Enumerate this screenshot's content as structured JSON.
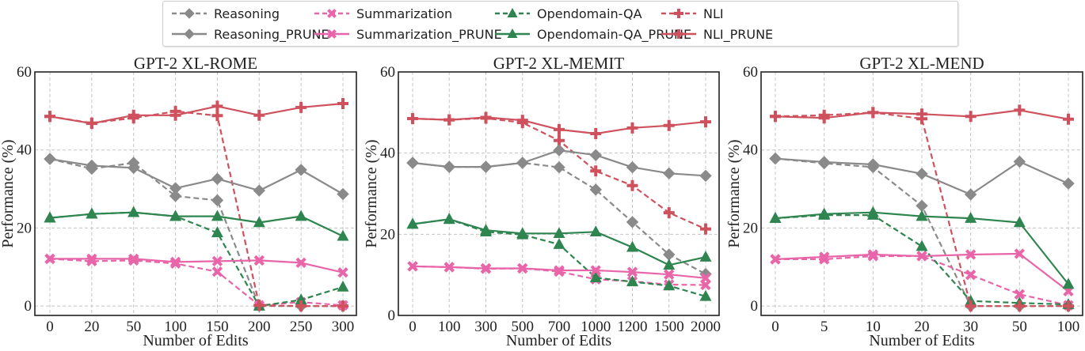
{
  "legend": {
    "entries": [
      {
        "name": "Reasoning",
        "color": "#8a8a8a",
        "dash": true,
        "marker": "diamond"
      },
      {
        "name": "Reasoning_PRUNE",
        "color": "#8a8a8a",
        "dash": false,
        "marker": "diamond"
      },
      {
        "name": "Summarization",
        "color": "#e865a9",
        "dash": true,
        "marker": "x"
      },
      {
        "name": "Summarization_PRUNE",
        "color": "#e865a9",
        "dash": false,
        "marker": "x"
      },
      {
        "name": "Opendomain-QA",
        "color": "#2e8550",
        "dash": true,
        "marker": "triangle"
      },
      {
        "name": "Opendomain-QA_PRUNE",
        "color": "#2e8550",
        "dash": false,
        "marker": "triangle"
      },
      {
        "name": "NLI",
        "color": "#cf515d",
        "dash": true,
        "marker": "plus"
      },
      {
        "name": "NLI_PRUNE",
        "color": "#cf515d",
        "dash": false,
        "marker": "plus"
      }
    ]
  },
  "chart_data": [
    {
      "type": "line",
      "title": "GPT-2 XL-ROME",
      "xlabel": "Number of Edits",
      "ylabel": "Performance (%)",
      "categories": [
        "0",
        "20",
        "50",
        "100",
        "150",
        "200",
        "250",
        "300"
      ],
      "ylim": [
        -2.4,
        60
      ],
      "yticks": [
        0,
        20,
        40,
        60
      ],
      "grid": true,
      "legend": "top (shared, above charts)",
      "series": [
        {
          "name": "Reasoning",
          "values": [
            37.7,
            35.2,
            36.7,
            28.2,
            27.1,
            0.0,
            0.0,
            0.0
          ]
        },
        {
          "name": "Reasoning_PRUNE",
          "values": [
            37.7,
            36.0,
            35.4,
            30.2,
            32.6,
            29.6,
            34.9,
            28.7
          ]
        },
        {
          "name": "Summarization",
          "values": [
            12.1,
            11.5,
            11.7,
            10.9,
            8.8,
            0.2,
            1.0,
            0.2
          ]
        },
        {
          "name": "Summarization_PRUNE",
          "values": [
            12.1,
            12.1,
            12.1,
            11.3,
            11.5,
            11.7,
            11.1,
            8.6
          ]
        },
        {
          "name": "Opendomain-QA",
          "values": [
            22.6,
            23.6,
            24.0,
            23.0,
            18.8,
            0.0,
            1.6,
            4.9
          ]
        },
        {
          "name": "Opendomain-QA_PRUNE",
          "values": [
            22.6,
            23.6,
            24.0,
            23.0,
            23.0,
            21.4,
            23.0,
            17.9
          ]
        },
        {
          "name": "NLI",
          "values": [
            48.6,
            46.9,
            48.2,
            49.9,
            48.8,
            0.2,
            0.0,
            0.0
          ]
        },
        {
          "name": "NLI_PRUNE",
          "values": [
            48.6,
            46.8,
            48.9,
            48.9,
            51.2,
            48.9,
            50.9,
            51.9
          ]
        }
      ]
    },
    {
      "type": "line",
      "title": "GPT-2 XL-MEMIT",
      "xlabel": "Number of Edits",
      "ylabel": "Performance (%)",
      "categories": [
        "0",
        "100",
        "300",
        "500",
        "700",
        "1000",
        "1200",
        "1500",
        "2000"
      ],
      "ylim": [
        0,
        60
      ],
      "yticks": [
        0,
        20,
        40,
        60
      ],
      "grid": true,
      "legend": "top (shared, above charts)",
      "series": [
        {
          "name": "Reasoning",
          "values": [
            37.6,
            36.6,
            36.6,
            37.6,
            36.5,
            31.0,
            23.0,
            15.0,
            10.2
          ]
        },
        {
          "name": "Reasoning_PRUNE",
          "values": [
            37.6,
            36.6,
            36.6,
            37.6,
            40.7,
            39.5,
            36.5,
            35.0,
            34.4
          ]
        },
        {
          "name": "Summarization",
          "values": [
            12.1,
            11.9,
            11.5,
            11.6,
            10.8,
            8.9,
            8.4,
            7.6,
            7.5
          ]
        },
        {
          "name": "Summarization_PRUNE",
          "values": [
            12.1,
            11.9,
            11.6,
            11.6,
            11.1,
            11.1,
            10.7,
            10.1,
            9.2
          ]
        },
        {
          "name": "Opendomain-QA",
          "values": [
            22.5,
            23.7,
            20.6,
            19.9,
            17.5,
            9.3,
            8.3,
            7.3,
            4.7
          ]
        },
        {
          "name": "Opendomain-QA_PRUNE",
          "values": [
            22.5,
            23.7,
            21.0,
            20.2,
            20.2,
            20.6,
            16.8,
            12.4,
            14.4
          ]
        },
        {
          "name": "NLI",
          "values": [
            48.5,
            48.2,
            48.6,
            47.5,
            43.1,
            35.6,
            32.0,
            25.3,
            21.3
          ]
        },
        {
          "name": "NLI_PRUNE",
          "values": [
            48.5,
            48.2,
            48.8,
            48.1,
            45.8,
            44.8,
            46.2,
            46.8,
            47.7
          ]
        }
      ]
    },
    {
      "type": "line",
      "title": "GPT-2 XL-MEND",
      "xlabel": "Number of Edits",
      "ylabel": "Performance (%)",
      "categories": [
        "0",
        "5",
        "10",
        "20",
        "30",
        "50",
        "100"
      ],
      "ylim": [
        -2.4,
        60
      ],
      "yticks": [
        0,
        20,
        40,
        60
      ],
      "grid": true,
      "legend": "top (shared, above charts)",
      "series": [
        {
          "name": "Reasoning",
          "values": [
            37.8,
            36.6,
            35.6,
            25.7,
            0.0,
            0.0,
            0.0
          ]
        },
        {
          "name": "Reasoning_PRUNE",
          "values": [
            37.8,
            36.9,
            36.3,
            33.9,
            28.6,
            37.0,
            31.4
          ]
        },
        {
          "name": "Summarization",
          "values": [
            12.0,
            12.0,
            12.8,
            12.8,
            8.0,
            3.0,
            0.2
          ]
        },
        {
          "name": "Summarization_PRUNE",
          "values": [
            12.0,
            12.6,
            13.2,
            12.8,
            13.2,
            13.4,
            3.8
          ]
        },
        {
          "name": "Opendomain-QA",
          "values": [
            22.5,
            23.3,
            23.3,
            15.3,
            1.3,
            0.8,
            0.4
          ]
        },
        {
          "name": "Opendomain-QA_PRUNE",
          "values": [
            22.5,
            23.6,
            24.0,
            23.0,
            22.5,
            21.4,
            5.6
          ]
        },
        {
          "name": "NLI",
          "values": [
            48.6,
            48.9,
            49.6,
            48.0,
            0.0,
            0.0,
            0.0
          ]
        },
        {
          "name": "NLI_PRUNE",
          "values": [
            48.6,
            48.2,
            49.6,
            49.2,
            48.6,
            50.2,
            47.9
          ]
        }
      ]
    }
  ]
}
